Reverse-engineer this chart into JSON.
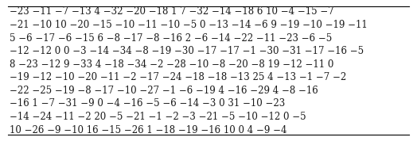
{
  "lines": [
    "−23 −11 −7 −13 4 −32 −20 −18 1 7 −32 −14 −18 6 10 −4 −15 −7",
    "−21 −10 10 −20 −15 −10 −11 −10 −5 0 −13 −14 −6 9 −19 −10 −19 −11",
    "5 −6 −17 −6 −15 6 −8 −17 −8 −16 2 −6 −14 −22 −11 −23 −6 −5",
    "−12 −12 0 0 −3 −14 −34 −8 −19 −30 −17 −17 −1 −30 −31 −17 −16 −5",
    "8 −23 −12 9 −33 4 −18 −34 −2 −28 −10 −8 −20 −8 19 −12 −11 0",
    "−19 −12 −10 −20 −11 −2 −17 −24 −18 −18 −13 25 4 −13 −1 −7 −2",
    "−22 −25 −19 −8 −17 −10 −27 −1 −6 −19 4 −16 −29 4 −8 −16",
    "−16 1 −7 −31 −9 0 −4 −16 −5 −6 −14 −3 0 31 −10 −23",
    "−14 −24 −11 −2 20 −5 −21 −1 −2 −3 −21 −5 −10 −12 0 −5",
    "10 −26 −9 −10 16 −15 −26 1 −18 −19 −16 10 0 4 −9 −4"
  ],
  "background_color": "#ffffff",
  "border_color": "#000000",
  "text_color": "#1a1a1a",
  "font_size": 8.5,
  "font_family": "serif",
  "fig_width": 5.24,
  "fig_height": 1.78,
  "dpi": 100
}
